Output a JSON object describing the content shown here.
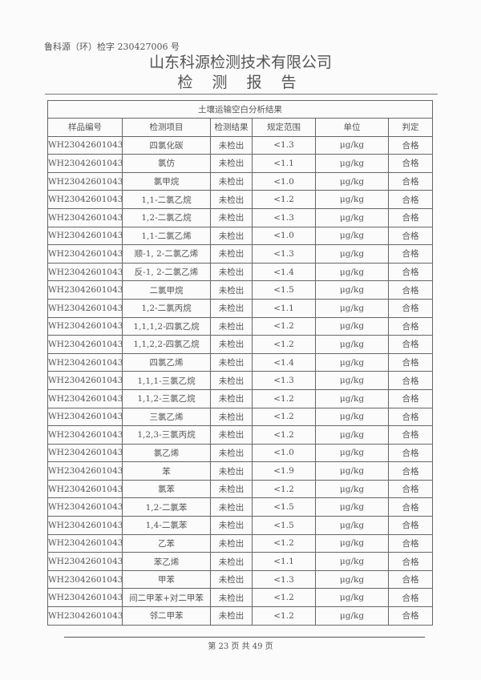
{
  "header": {
    "report_number": "鲁科源（环）检字 230427006 号",
    "company": "山东科源检测技术有限公司",
    "report_title": "检 测 报 告"
  },
  "table": {
    "caption": "土壤运输空白分析结果",
    "columns": [
      "样品编号",
      "检测项目",
      "检测结果",
      "规定范围",
      "单位",
      "判定"
    ],
    "rows": [
      [
        "WH23042601043",
        "四氯化碳",
        "未检出",
        "<1.3",
        "μg/kg",
        "合格"
      ],
      [
        "WH23042601043",
        "氯仿",
        "未检出",
        "<1.1",
        "μg/kg",
        "合格"
      ],
      [
        "WH23042601043",
        "氯甲烷",
        "未检出",
        "<1.0",
        "μg/kg",
        "合格"
      ],
      [
        "WH23042601043",
        "1,1-二氯乙烷",
        "未检出",
        "<1.2",
        "μg/kg",
        "合格"
      ],
      [
        "WH23042601043",
        "1,2-二氯乙烷",
        "未检出",
        "<1.3",
        "μg/kg",
        "合格"
      ],
      [
        "WH23042601043",
        "1,1-二氯乙烯",
        "未检出",
        "<1.0",
        "μg/kg",
        "合格"
      ],
      [
        "WH23042601043",
        "顺-1, 2-二氯乙烯",
        "未检出",
        "<1.3",
        "μg/kg",
        "合格"
      ],
      [
        "WH23042601043",
        "反-1, 2-二氯乙烯",
        "未检出",
        "<1.4",
        "μg/kg",
        "合格"
      ],
      [
        "WH23042601043",
        "二氯甲烷",
        "未检出",
        "<1.5",
        "μg/kg",
        "合格"
      ],
      [
        "WH23042601043",
        "1,2-二氯丙烷",
        "未检出",
        "<1.1",
        "μg/kg",
        "合格"
      ],
      [
        "WH23042601043",
        "1,1,1,2-四氯乙烷",
        "未检出",
        "<1.2",
        "μg/kg",
        "合格"
      ],
      [
        "WH23042601043",
        "1,1,2,2-四氯乙烷",
        "未检出",
        "<1.2",
        "μg/kg",
        "合格"
      ],
      [
        "WH23042601043",
        "四氯乙烯",
        "未检出",
        "<1.4",
        "μg/kg",
        "合格"
      ],
      [
        "WH23042601043",
        "1,1,1-三氯乙烷",
        "未检出",
        "<1.3",
        "μg/kg",
        "合格"
      ],
      [
        "WH23042601043",
        "1,1,2-三氯乙烷",
        "未检出",
        "<1.2",
        "μg/kg",
        "合格"
      ],
      [
        "WH23042601043",
        "三氯乙烯",
        "未检出",
        "<1.2",
        "μg/kg",
        "合格"
      ],
      [
        "WH23042601043",
        "1,2,3-三氯丙烷",
        "未检出",
        "<1.2",
        "μg/kg",
        "合格"
      ],
      [
        "WH23042601043",
        "氯乙烯",
        "未检出",
        "<1.0",
        "μg/kg",
        "合格"
      ],
      [
        "WH23042601043",
        "苯",
        "未检出",
        "<1.9",
        "μg/kg",
        "合格"
      ],
      [
        "WH23042601043",
        "氯苯",
        "未检出",
        "<1.2",
        "μg/kg",
        "合格"
      ],
      [
        "WH23042601043",
        "1,2-二氯苯",
        "未检出",
        "<1.5",
        "μg/kg",
        "合格"
      ],
      [
        "WH23042601043",
        "1,4-二氯苯",
        "未检出",
        "<1.5",
        "μg/kg",
        "合格"
      ],
      [
        "WH23042601043",
        "乙苯",
        "未检出",
        "<1.2",
        "μg/kg",
        "合格"
      ],
      [
        "WH23042601043",
        "苯乙烯",
        "未检出",
        "<1.1",
        "μg/kg",
        "合格"
      ],
      [
        "WH23042601043",
        "甲苯",
        "未检出",
        "<1.3",
        "μg/kg",
        "合格"
      ],
      [
        "WH23042601043",
        "间二甲苯+对二甲苯",
        "未检出",
        "<1.2",
        "μg/kg",
        "合格"
      ],
      [
        "WH23042601043",
        "邻二甲苯",
        "未检出",
        "<1.2",
        "μg/kg",
        "合格"
      ]
    ]
  },
  "footer": {
    "page_info": "第 23 页 共 49 页"
  }
}
